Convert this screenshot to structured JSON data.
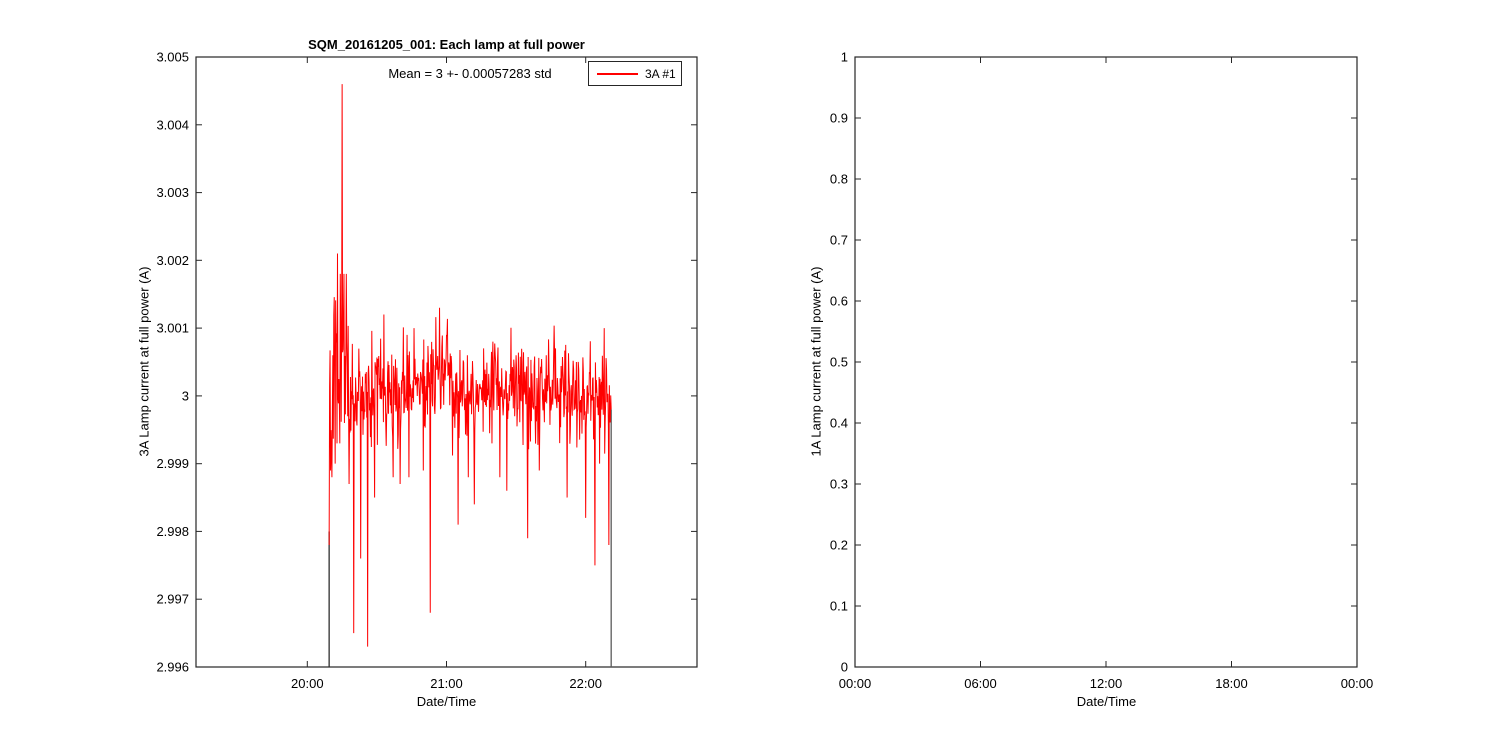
{
  "figure": {
    "background": "#ffffff"
  },
  "chart_data": [
    {
      "id": "lamp3A",
      "type": "line",
      "title": "SQM_20161205_001: Each lamp at full power",
      "xlabel": "Date/Time",
      "ylabel": "3A Lamp current at full power (A)",
      "annotation": "Mean = 3 +- 0.00057283 std",
      "legend": {
        "label": "3A #1",
        "color": "#ff0000",
        "position": "top-right-inside"
      },
      "grid": false,
      "x_axis": {
        "range_min": [
          1152,
          1368
        ],
        "range_label": [
          "19:12",
          "22:48"
        ],
        "ticks": [
          {
            "label": "20:00",
            "min": 1200
          },
          {
            "label": "21:00",
            "min": 1260
          },
          {
            "label": "22:00",
            "min": 1320
          }
        ]
      },
      "y_axis": {
        "min": 2.996,
        "max": 3.005,
        "tick_step": 0.001,
        "ticks": [
          {
            "label": "3.005",
            "v": 3.005
          },
          {
            "label": "3.004",
            "v": 3.004
          },
          {
            "label": "3.003",
            "v": 3.003
          },
          {
            "label": "3.002",
            "v": 3.002
          },
          {
            "label": "3.001",
            "v": 3.001
          },
          {
            "label": "3",
            "v": 3.0
          },
          {
            "label": "2.999",
            "v": 2.999
          },
          {
            "label": "2.998",
            "v": 2.998
          },
          {
            "label": "2.997",
            "v": 2.997
          },
          {
            "label": "2.996",
            "v": 2.996
          }
        ]
      },
      "series": [
        {
          "name": "3A #1",
          "color": "#ff0000",
          "mean": 3.0,
          "std_reported": 0.00057283,
          "noise_std": 0.00035,
          "noise_seed": 20161205,
          "start_min": 1209.4,
          "end_min": 1331,
          "step_min": 0.2,
          "transient": {
            "from_min": 1209.4,
            "to_min": 1219,
            "std_mult": 2.6
          },
          "bumps": [
            {
              "from_min": 1211,
              "to_min": 1217,
              "offset": 0.0005
            },
            {
              "from_min": 1252,
              "to_min": 1262,
              "offset": 0.00035
            }
          ],
          "spikes": [
            [
              1209.4,
              2.9978
            ],
            [
              1210,
              2.9989
            ],
            [
              1211,
              3.0006
            ],
            [
              1212,
              2.999
            ],
            [
              1213,
              3.0021
            ],
            [
              1214,
              2.9993
            ],
            [
              1215,
              3.0046
            ],
            [
              1216,
              2.9996
            ],
            [
              1217,
              3.0008
            ],
            [
              1218,
              2.9987
            ],
            [
              1220,
              2.9965
            ],
            [
              1223,
              2.9976
            ],
            [
              1226,
              2.9963
            ],
            [
              1229,
              2.9985
            ],
            [
              1233,
              3.0012
            ],
            [
              1237,
              2.9988
            ],
            [
              1240,
              2.9987
            ],
            [
              1243,
              3.0009
            ],
            [
              1246,
              3.001
            ],
            [
              1250,
              2.9989
            ],
            [
              1253,
              2.9968
            ],
            [
              1257,
              3.0013
            ],
            [
              1260,
              3.0009
            ],
            [
              1265,
              2.9981
            ],
            [
              1269,
              3.0006
            ],
            [
              1272,
              2.9984
            ],
            [
              1276,
              3.0007
            ],
            [
              1280,
              3.0008
            ],
            [
              1283,
              2.9988
            ],
            [
              1286,
              2.9986
            ],
            [
              1290,
              3.0006
            ],
            [
              1295,
              2.9979
            ],
            [
              1300,
              2.9989
            ],
            [
              1303,
              3.0006
            ],
            [
              1307,
              3.0007
            ],
            [
              1312,
              2.9985
            ],
            [
              1316,
              3.0005
            ],
            [
              1320,
              2.9982
            ],
            [
              1324,
              2.9975
            ],
            [
              1326,
              2.999
            ],
            [
              1328,
              3.001
            ],
            [
              1330,
              2.9978
            ],
            [
              1331,
              2.9998
            ]
          ],
          "edge_lines": [
            {
              "min": 1209.4,
              "v_from": 2.996,
              "v_to": 2.998,
              "color": "#2e2e2e"
            },
            {
              "min": 1331,
              "v_from": 2.996,
              "v_to": 2.9998,
              "color": "#5a5a5a"
            }
          ]
        }
      ]
    },
    {
      "id": "lamp1A",
      "type": "line",
      "xlabel": "Date/Time",
      "ylabel": "1A Lamp current at full power (A)",
      "grid": false,
      "x_axis": {
        "range_min": [
          0,
          1440
        ],
        "range_label": [
          "00:00",
          "00:00"
        ],
        "ticks": [
          {
            "label": "00:00",
            "min": 0
          },
          {
            "label": "06:00",
            "min": 360
          },
          {
            "label": "12:00",
            "min": 720
          },
          {
            "label": "18:00",
            "min": 1080
          },
          {
            "label": "00:00",
            "min": 1440
          }
        ]
      },
      "y_axis": {
        "min": 0,
        "max": 1,
        "tick_step": 0.1,
        "ticks": [
          {
            "label": "1",
            "v": 1.0
          },
          {
            "label": "0.9",
            "v": 0.9
          },
          {
            "label": "0.8",
            "v": 0.8
          },
          {
            "label": "0.7",
            "v": 0.7
          },
          {
            "label": "0.6",
            "v": 0.6
          },
          {
            "label": "0.5",
            "v": 0.5
          },
          {
            "label": "0.4",
            "v": 0.4
          },
          {
            "label": "0.3",
            "v": 0.3
          },
          {
            "label": "0.2",
            "v": 0.2
          },
          {
            "label": "0.1",
            "v": 0.1
          },
          {
            "label": "0",
            "v": 0.0
          }
        ]
      },
      "series": []
    }
  ]
}
